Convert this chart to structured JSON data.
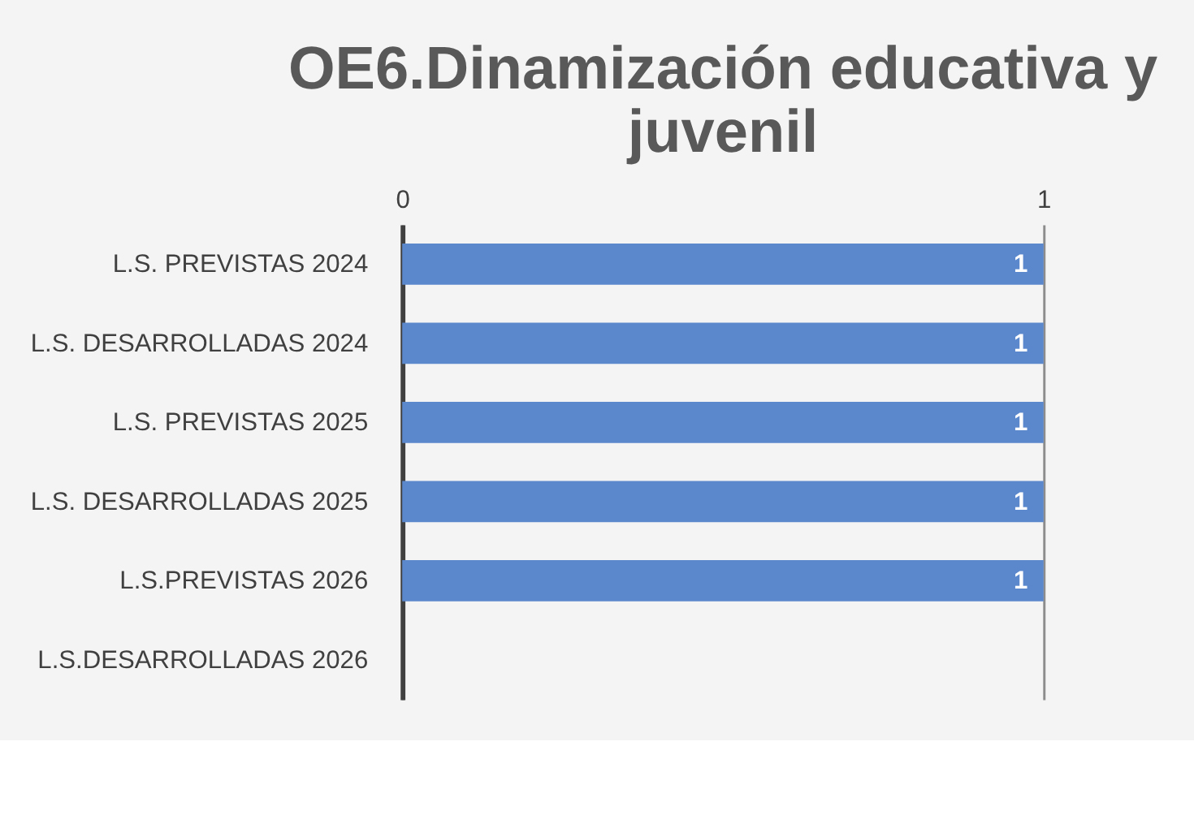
{
  "chart_data": {
    "type": "bar",
    "orientation": "horizontal",
    "title": "OE6.Dinamización educativa y juvenil",
    "categories": [
      "L.S. PREVISTAS 2024",
      "L.S. DESARROLLADAS 2024",
      "L.S. PREVISTAS 2025",
      "L.S. DESARROLLADAS 2025",
      "L.S.PREVISTAS 2026",
      "L.S.DESARROLLADAS 2026"
    ],
    "values": [
      1,
      1,
      1,
      1,
      1,
      null
    ],
    "color": "#5b87cc",
    "xlim": [
      0,
      1
    ],
    "xticks": [
      0,
      1
    ],
    "grid": "x",
    "data_labels": true
  }
}
